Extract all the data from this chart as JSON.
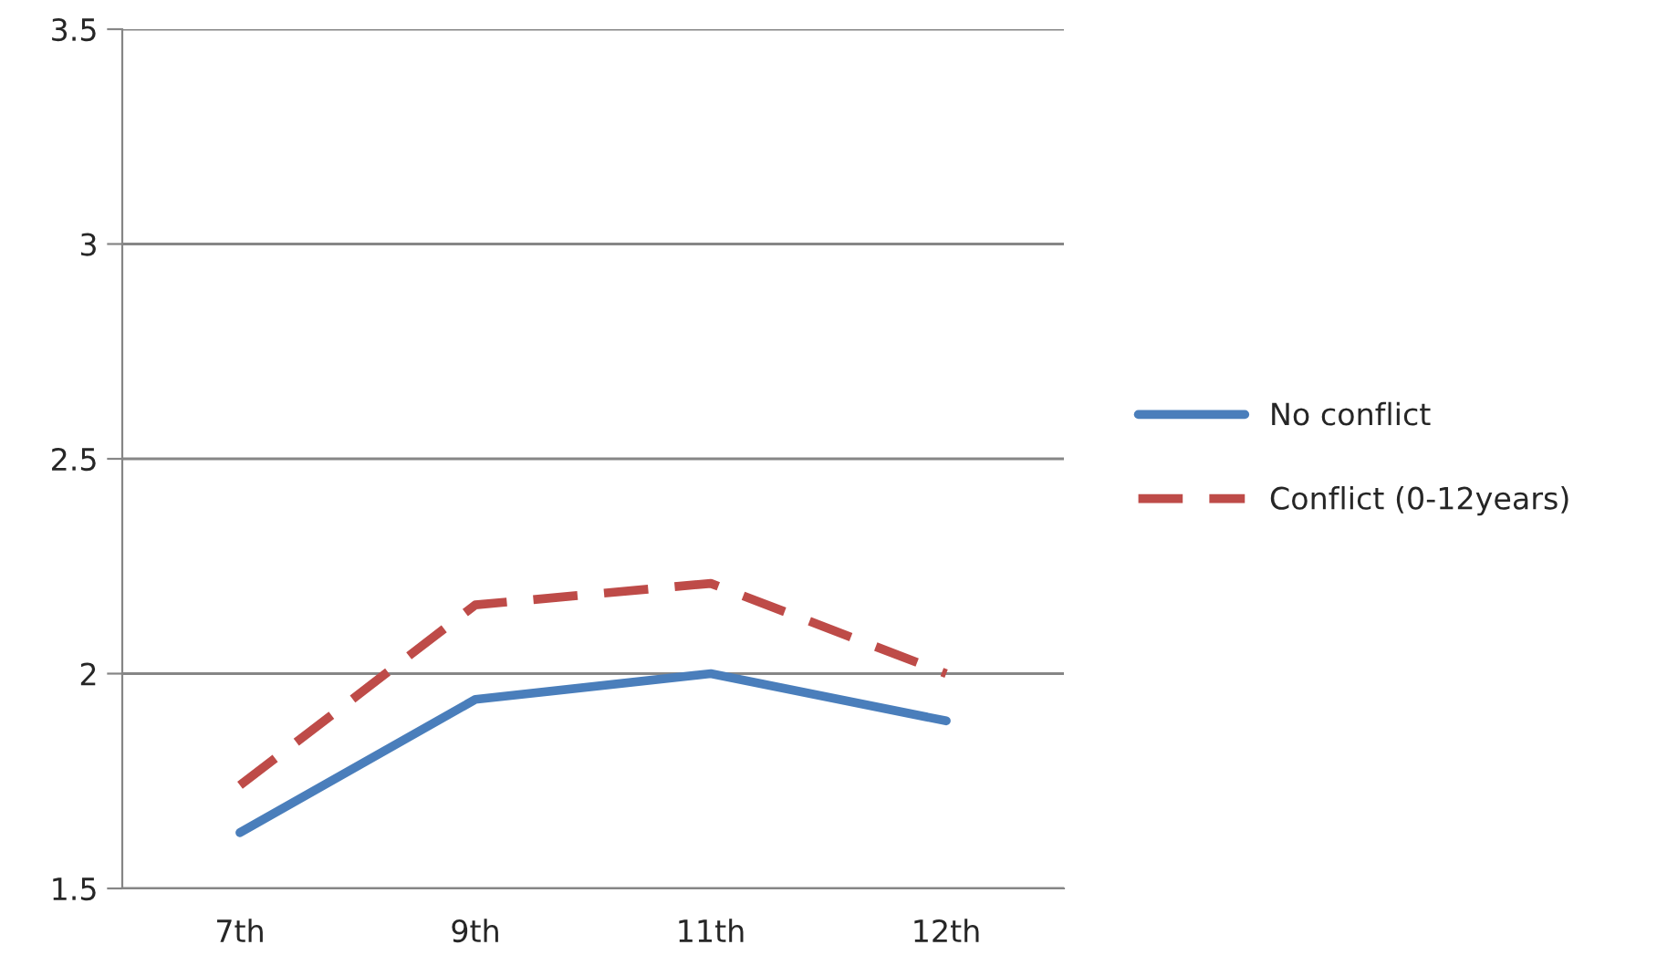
{
  "chart_data": {
    "type": "line",
    "categories": [
      "7th",
      "9th",
      "11th",
      "12th"
    ],
    "series": [
      {
        "name": "No conflict",
        "color": "#4a7ebb",
        "values": [
          1.63,
          1.94,
          2.0,
          1.89
        ],
        "line_style": "solid"
      },
      {
        "name": "Conflict (0-12years)",
        "color": "#be4b48",
        "values": [
          1.74,
          2.16,
          2.21,
          2.0
        ],
        "line_style": "dashed"
      }
    ],
    "ylim": [
      1.5,
      3.5
    ],
    "yticks": [
      1.5,
      2,
      2.5,
      3,
      3.5
    ],
    "grid": "y",
    "legend": "right"
  }
}
